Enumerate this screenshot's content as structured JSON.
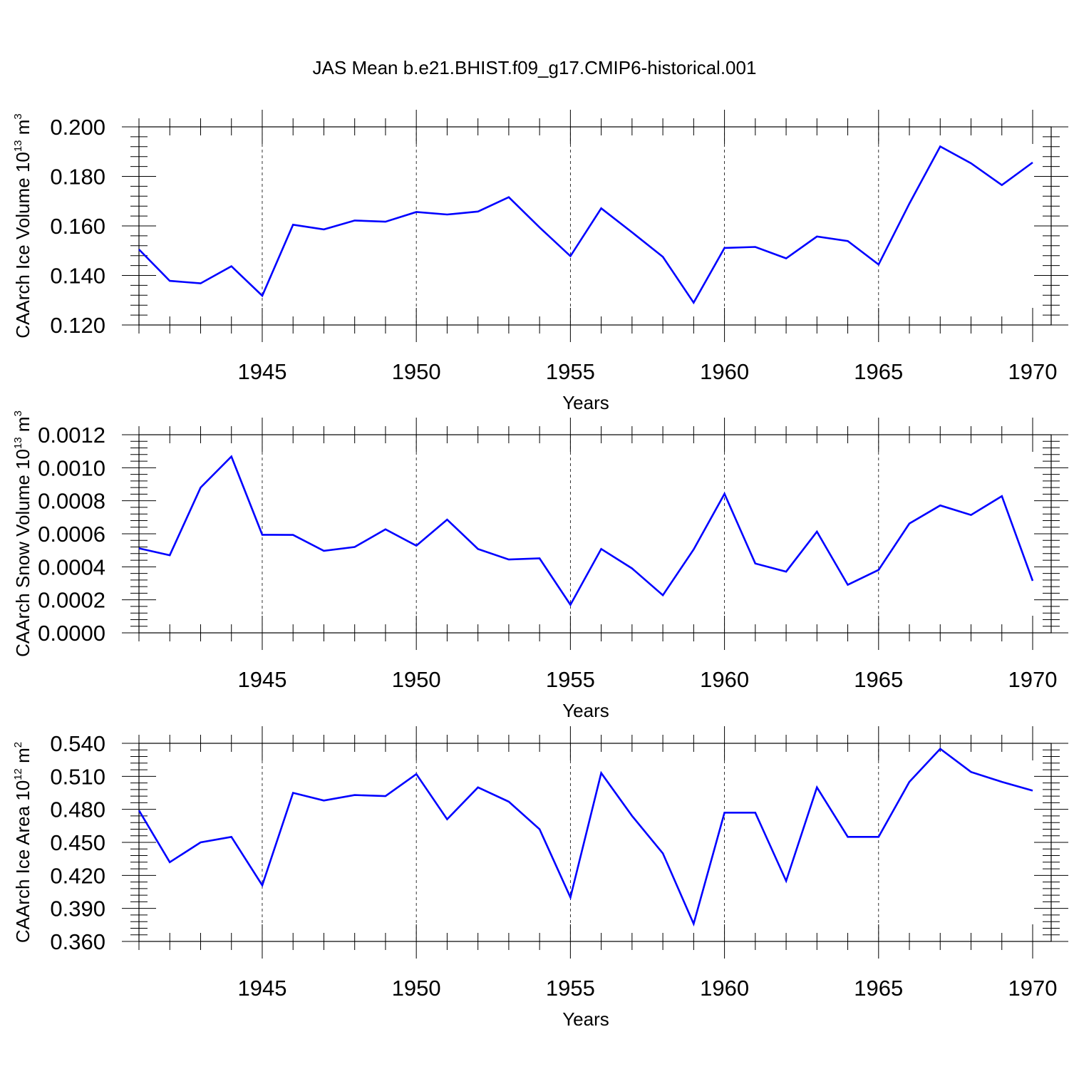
{
  "title": "JAS Mean b.e21.BHIST.f09_g17.CMIP6-historical.001",
  "line_color": "#0000ff",
  "chart_data": [
    {
      "type": "line",
      "ylabel": {
        "prefix": "CAArch Ice Volume 10",
        "exponent": "13",
        "unit": " m",
        "unit_exponent": "3"
      },
      "xlabel": "Years",
      "xlim": [
        1941,
        1970
      ],
      "xticks": [
        1945,
        1950,
        1955,
        1960,
        1965,
        1970
      ],
      "ylim": [
        0.12,
        0.2
      ],
      "yticks": [
        "0.120",
        "0.140",
        "0.160",
        "0.180",
        "0.200"
      ],
      "x": [
        1941,
        1942,
        1943,
        1944,
        1945,
        1946,
        1947,
        1948,
        1949,
        1950,
        1951,
        1952,
        1953,
        1954,
        1955,
        1956,
        1957,
        1958,
        1959,
        1960,
        1961,
        1962,
        1963,
        1964,
        1965,
        1966,
        1967,
        1968,
        1969,
        1970
      ],
      "values": [
        0.1505,
        0.1378,
        0.1368,
        0.1437,
        0.1318,
        0.1605,
        0.1586,
        0.1622,
        0.1617,
        0.1656,
        0.1646,
        0.1658,
        0.1716,
        0.1594,
        0.1478,
        0.1671,
        0.1574,
        0.1475,
        0.129,
        0.1511,
        0.1515,
        0.1469,
        0.1557,
        0.1539,
        0.1444,
        0.169,
        0.1921,
        0.1853,
        0.1765,
        0.1856
      ]
    },
    {
      "type": "line",
      "ylabel": {
        "prefix": "CAArch Snow Volume 10",
        "exponent": "13",
        "unit": " m",
        "unit_exponent": "3"
      },
      "xlabel": "Years",
      "xlim": [
        1941,
        1970
      ],
      "xticks": [
        1945,
        1950,
        1955,
        1960,
        1965,
        1970
      ],
      "ylim": [
        0,
        0.0012
      ],
      "yticks": [
        "0.0000",
        "0.0002",
        "0.0004",
        "0.0006",
        "0.0008",
        "0.0010",
        "0.0012"
      ],
      "x": [
        1941,
        1942,
        1943,
        1944,
        1945,
        1946,
        1947,
        1948,
        1949,
        1950,
        1951,
        1952,
        1953,
        1954,
        1955,
        1956,
        1957,
        1958,
        1959,
        1960,
        1961,
        1962,
        1963,
        1964,
        1965,
        1966,
        1967,
        1968,
        1969,
        1970
      ],
      "values": [
        0.000512,
        0.00047,
        0.00088,
        0.001068,
        0.000594,
        0.000593,
        0.000497,
        0.00052,
        0.000627,
        0.000528,
        0.000686,
        0.000508,
        0.000444,
        0.000451,
        0.00017,
        0.000508,
        0.00039,
        0.000228,
        0.000505,
        0.000842,
        0.00042,
        0.000371,
        0.000613,
        0.000291,
        0.000381,
        0.000662,
        0.000772,
        0.000714,
        0.000828,
        0.000315
      ]
    },
    {
      "type": "line",
      "ylabel": {
        "prefix": "CAArch Ice Area 10",
        "exponent": "12",
        "unit": " m",
        "unit_exponent": "2"
      },
      "xlabel": "Years",
      "xlim": [
        1941,
        1970
      ],
      "xticks": [
        1945,
        1950,
        1955,
        1960,
        1965,
        1970
      ],
      "ylim": [
        0.36,
        0.54
      ],
      "yticks": [
        "0.360",
        "0.390",
        "0.420",
        "0.450",
        "0.480",
        "0.510",
        "0.540"
      ],
      "x": [
        1941,
        1942,
        1943,
        1944,
        1945,
        1946,
        1947,
        1948,
        1949,
        1950,
        1951,
        1952,
        1953,
        1954,
        1955,
        1956,
        1957,
        1958,
        1959,
        1960,
        1961,
        1962,
        1963,
        1964,
        1965,
        1966,
        1967,
        1968,
        1969,
        1970
      ],
      "values": [
        0.479,
        0.432,
        0.45,
        0.455,
        0.411,
        0.495,
        0.488,
        0.493,
        0.492,
        0.512,
        0.471,
        0.5,
        0.487,
        0.462,
        0.4,
        0.513,
        0.474,
        0.44,
        0.376,
        0.477,
        0.477,
        0.415,
        0.5,
        0.455,
        0.455,
        0.505,
        0.535,
        0.514,
        0.505,
        0.497
      ]
    }
  ]
}
